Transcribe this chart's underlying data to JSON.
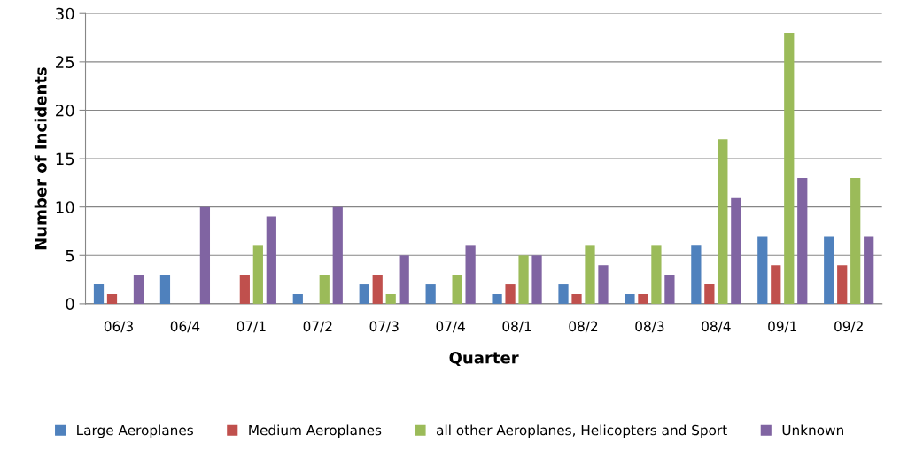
{
  "chart_data": {
    "type": "bar",
    "xlabel": "Quarter",
    "ylabel": "Number of Incidents",
    "categories": [
      "06/3",
      "06/4",
      "07/1",
      "07/2",
      "07/3",
      "07/4",
      "08/1",
      "08/2",
      "08/3",
      "08/4",
      "09/1",
      "09/2"
    ],
    "series": [
      {
        "name": "Large Aeroplanes",
        "color": "#4f81bd",
        "values": [
          2,
          3,
          0,
          1,
          2,
          2,
          1,
          2,
          1,
          6,
          7,
          7
        ]
      },
      {
        "name": "Medium Aeroplanes",
        "color": "#c0504d",
        "values": [
          1,
          0,
          3,
          0,
          3,
          0,
          2,
          1,
          1,
          2,
          4,
          4
        ]
      },
      {
        "name": "all other Aeroplanes, Helicopters and Sport",
        "color": "#9bbb59",
        "values": [
          0,
          0,
          6,
          3,
          1,
          3,
          5,
          6,
          6,
          17,
          28,
          13
        ]
      },
      {
        "name": "Unknown",
        "color": "#8064a2",
        "values": [
          3,
          10,
          9,
          10,
          5,
          6,
          5,
          4,
          3,
          11,
          13,
          7
        ]
      }
    ],
    "ylim": [
      0,
      30
    ],
    "yticks": [
      0,
      5,
      10,
      15,
      20,
      25,
      30
    ],
    "grid": "y",
    "legend": "bottom"
  }
}
